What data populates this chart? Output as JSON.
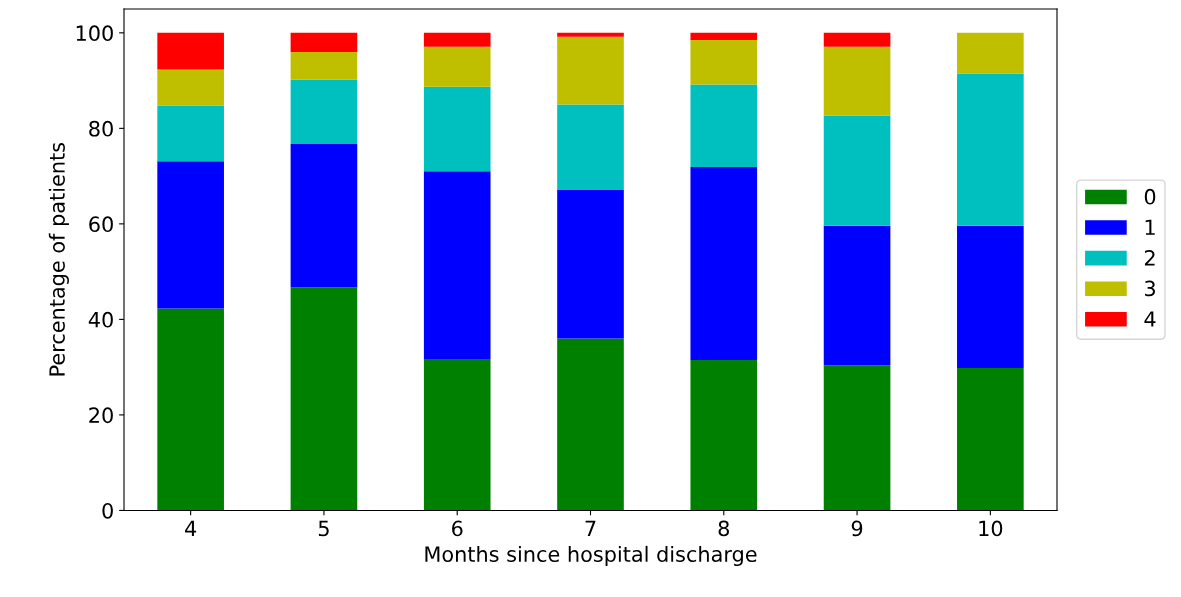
{
  "chart_data": {
    "type": "bar",
    "stacked": true,
    "xlabel": "Months since hospital discharge",
    "ylabel": "Percentage of patients",
    "categories": [
      "4",
      "5",
      "6",
      "7",
      "8",
      "9",
      "10"
    ],
    "series": [
      {
        "name": "0",
        "color": "#008000",
        "values": [
          42.3,
          46.7,
          31.7,
          36.0,
          31.5,
          30.4,
          29.8
        ]
      },
      {
        "name": "1",
        "color": "#0000ff",
        "values": [
          30.8,
          30.0,
          39.3,
          31.1,
          40.4,
          29.2,
          29.8
        ]
      },
      {
        "name": "2",
        "color": "#00bfbf",
        "values": [
          11.7,
          13.5,
          17.7,
          17.9,
          17.3,
          23.1,
          31.9
        ]
      },
      {
        "name": "3",
        "color": "#bfbf00",
        "values": [
          7.5,
          5.8,
          8.4,
          14.2,
          9.3,
          14.4,
          8.5
        ]
      },
      {
        "name": "4",
        "color": "#ff0000",
        "values": [
          7.7,
          4.0,
          2.9,
          0.8,
          1.5,
          2.9,
          0
        ]
      }
    ],
    "ylim": [
      0,
      105
    ],
    "yticks": [
      0,
      20,
      40,
      60,
      80,
      100
    ],
    "legend": "right",
    "grid": false
  }
}
